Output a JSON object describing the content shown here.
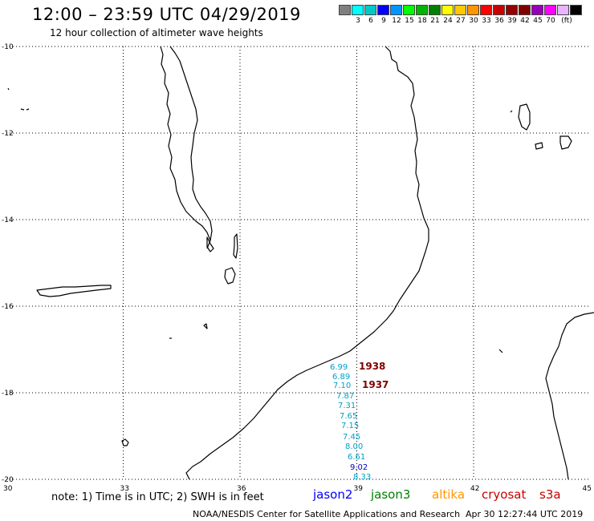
{
  "header": {
    "title": "12:00 – 23:59 UTC 04/29/2019",
    "subtitle": "12 hour collection of altimeter wave heights"
  },
  "legend": {
    "unit": "(ft)",
    "colors": [
      "#808080",
      "#00ffff",
      "#00c8c8",
      "#0000ff",
      "#0096ff",
      "#00ff00",
      "#00b400",
      "#008000",
      "#ffff00",
      "#ffc800",
      "#ff9600",
      "#ff0000",
      "#c80000",
      "#960000",
      "#800000",
      "#9600b4",
      "#ff00ff",
      "#e8b4ff",
      "#000000"
    ],
    "labels": [
      "3",
      "6",
      "9",
      "12",
      "15",
      "18",
      "21",
      "24",
      "27",
      "30",
      "33",
      "36",
      "39",
      "42",
      "45",
      "70"
    ]
  },
  "map": {
    "lat_labels": [
      "-10",
      "-12",
      "-14",
      "-16",
      "-18",
      "-20"
    ],
    "lon_labels": [
      "30",
      "33",
      "36",
      "39",
      "42",
      "45"
    ]
  },
  "observations": [
    {
      "value": "6.99",
      "color": "#00a0c8"
    },
    {
      "value": "6.89",
      "color": "#00a0c8"
    },
    {
      "value": "7.10",
      "color": "#00a0c8"
    },
    {
      "value": "7.87",
      "color": "#00a0c8"
    },
    {
      "value": "7.31",
      "color": "#00a0c8"
    },
    {
      "value": "7.65",
      "color": "#00a0c8"
    },
    {
      "value": "7.15",
      "color": "#00a0c8"
    },
    {
      "value": "7.45",
      "color": "#00a0c8"
    },
    {
      "value": "8.00",
      "color": "#00a0c8"
    },
    {
      "value": "6.61",
      "color": "#00a0c8"
    },
    {
      "value": "9.02",
      "color": "#0000c8"
    },
    {
      "value": "8.33",
      "color": "#00a0c8"
    }
  ],
  "pass_times": [
    {
      "value": "1938",
      "color": "#800000"
    },
    {
      "value": "1937",
      "color": "#800000"
    }
  ],
  "footer": {
    "note": "note: 1) Time is in UTC; 2) SWH is in feet",
    "satellites": [
      {
        "name": "jason2",
        "color": "#0000ff"
      },
      {
        "name": "jason3",
        "color": "#008000"
      },
      {
        "name": "altika",
        "color": "#ff9600"
      },
      {
        "name": "cryosat",
        "color": "#c80000"
      },
      {
        "name": "s3a",
        "color": "#c80000"
      }
    ],
    "credit": "NOAA/NESDIS Center for Satellite Applications and Research",
    "timestamp": "Apr 30 12:27:44 UTC 2019"
  }
}
